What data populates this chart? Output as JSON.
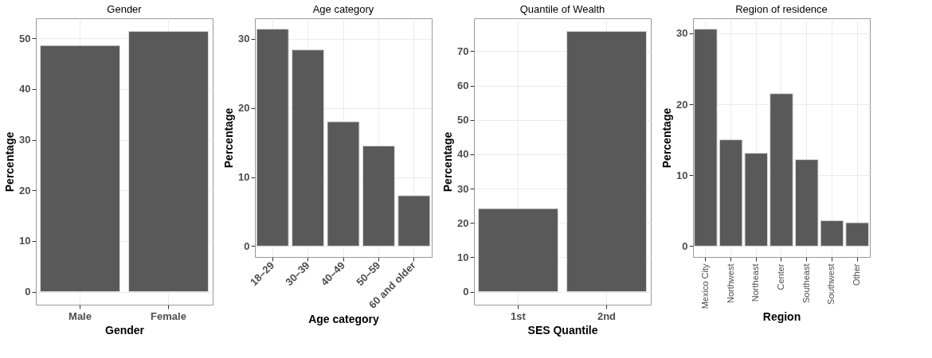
{
  "chart_data": [
    {
      "type": "bar",
      "title": "Gender",
      "xlabel": "Gender",
      "ylabel": "Percentage",
      "categories": [
        "Male",
        "Female"
      ],
      "values": [
        48.6,
        51.4
      ],
      "color": "#595959",
      "ylim": [
        -2.57,
        53.97
      ],
      "yticks": [
        0,
        10,
        20,
        30,
        40,
        50
      ],
      "grid": true
    },
    {
      "type": "bar",
      "title": "Age category",
      "xlabel": "Age category",
      "ylabel": "Percentage",
      "categories": [
        "18–29",
        "30–39",
        "40–49",
        "50–59",
        "60 and older"
      ],
      "values": [
        31.4,
        28.4,
        18.0,
        14.5,
        7.3
      ],
      "color": "#595959",
      "ylim": [
        -1.57,
        32.97
      ],
      "yticks": [
        0,
        10,
        20,
        30
      ],
      "grid": true
    },
    {
      "type": "bar",
      "title": "Quantile of Wealth",
      "xlabel": "SES Quantile",
      "ylabel": "Percentage",
      "categories": [
        "1st",
        "2nd"
      ],
      "values": [
        24.2,
        75.8
      ],
      "color": "#595959",
      "ylim": [
        -3.79,
        79.59
      ],
      "yticks": [
        0,
        10,
        20,
        30,
        40,
        50,
        60,
        70
      ],
      "grid": true
    },
    {
      "type": "bar",
      "title": "Region of residence",
      "xlabel": "Region",
      "ylabel": "Percentage",
      "categories": [
        "Mexico City",
        "Northwest",
        "Northeast",
        "Center",
        "Southeast",
        "Southwest",
        "Other"
      ],
      "values": [
        30.6,
        15.0,
        13.1,
        21.5,
        12.2,
        3.6,
        3.3
      ],
      "color": "#595959",
      "ylim": [
        -1.53,
        32.13
      ],
      "yticks": [
        0,
        10,
        20,
        30
      ],
      "grid": true
    }
  ]
}
